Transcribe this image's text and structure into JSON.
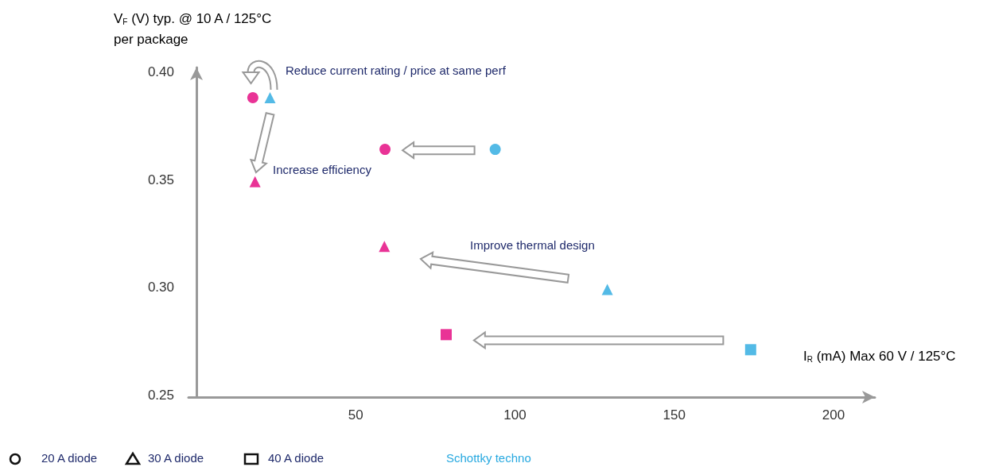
{
  "chart_data": {
    "type": "scatter",
    "xlabel": "I$_{R}$ (mA) Max 60 V / 125°C",
    "ylabel": "V$_{F}$ (V) typ. @ 10 A / 125°C\nper package",
    "xlim": [
      -2.5,
      213
    ],
    "xticks": [
      50,
      100,
      150,
      200
    ],
    "ylim": [
      0.249,
      0.402
    ],
    "yticks": [
      0.25,
      {
        "value": 0.3,
        "label": "0.30"
      },
      0.35,
      {
        "value": 0.4,
        "label": "0.40"
      }
    ],
    "grid": false,
    "series": [
      {
        "marker": "circle",
        "color": "#e4007c",
        "x": [
          17.7,
          59.2
        ],
        "values": [
          0.388,
          0.364
        ]
      },
      {
        "marker": "triangle",
        "color": "#e4007c",
        "x": [
          18.4,
          59
        ],
        "values": [
          0.349,
          0.319
        ]
      },
      {
        "marker": "square",
        "color": "#e4007c",
        "x": [
          78.4
        ],
        "values": [
          0.278
        ]
      },
      {
        "marker": "circle",
        "color": "#28a9e0",
        "x": [
          93.8
        ],
        "values": [
          0.364
        ]
      },
      {
        "marker": "triangle",
        "color": "#28a9e0",
        "x": [
          23.1,
          129
        ],
        "values": [
          0.388,
          0.299
        ]
      },
      {
        "marker": "square",
        "color": "#28a9e0",
        "x": [
          174
        ],
        "values": [
          0.271
        ]
      }
    ],
    "annotations": [
      "Reduce current rating / price at same perf",
      "Increase efficiency",
      "Improve thermal design",
      "20 A diode",
      "30 A diode",
      "40 A diode",
      "Schottky techno"
    ]
  }
}
